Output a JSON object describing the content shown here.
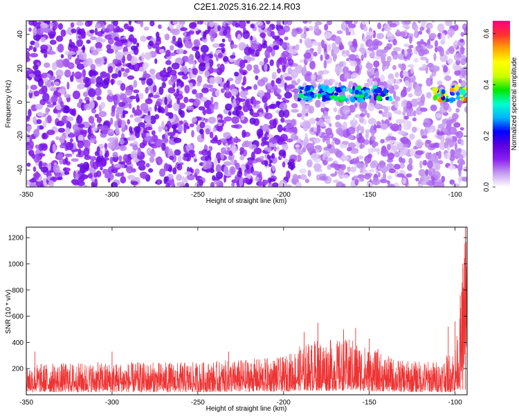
{
  "title": "C2E1.2025.316.22.14.R03",
  "chart_data": [
    {
      "type": "heatmap",
      "xlabel": "Height of straight line (km)",
      "ylabel": "Frequency (Hz)",
      "xlim": [
        -350,
        -93
      ],
      "ylim": [
        -50,
        48
      ],
      "xticks": [
        -350,
        -300,
        -250,
        -200,
        -150,
        -100
      ],
      "yticks": [
        -40,
        -20,
        0,
        20,
        40
      ],
      "colorbar": {
        "label": "Normalized spectral amplitude",
        "range": [
          0,
          0.65
        ],
        "ticks": [
          "0.0",
          "0.2",
          "0.4",
          "0.6"
        ],
        "colors": [
          "#ffffff",
          "#c59cf0",
          "#8a1ff0",
          "#5a00e0",
          "#0000ff",
          "#00b3ff",
          "#00ffcc",
          "#00e600",
          "#ccff00",
          "#ffff00",
          "#ffa500",
          "#ff3030",
          "#ff0080"
        ]
      },
      "background_amplitude_range": [
        0.02,
        0.15
      ],
      "signal_bands": [
        {
          "x_start": -192,
          "x_end": -137,
          "frequency": 5,
          "amplitude_range": [
            0.18,
            0.38
          ]
        },
        {
          "x_start": -112,
          "x_end": -93,
          "frequency": 5,
          "amplitude_range": [
            0.18,
            0.58
          ]
        }
      ]
    },
    {
      "type": "line",
      "xlabel": "Height of straight line (km)",
      "ylabel": "SNR (10 * v/v)",
      "xlim": [
        -350,
        -93
      ],
      "ylim": [
        0,
        1280
      ],
      "xticks": [
        -350,
        -300,
        -250,
        -200,
        -150,
        -100
      ],
      "yticks": [
        200,
        400,
        600,
        800,
        1000,
        1200
      ],
      "series": [
        {
          "color": "#ee3333",
          "envelope": [
            {
              "x": -350,
              "low": 20,
              "high": 240
            },
            {
              "x": -300,
              "low": 20,
              "high": 250
            },
            {
              "x": -250,
              "low": 20,
              "high": 250
            },
            {
              "x": -200,
              "low": 25,
              "high": 290
            },
            {
              "x": -190,
              "low": 30,
              "high": 380
            },
            {
              "x": -180,
              "low": 30,
              "high": 430
            },
            {
              "x": -170,
              "low": 30,
              "high": 420
            },
            {
              "x": -160,
              "low": 30,
              "high": 430
            },
            {
              "x": -150,
              "low": 25,
              "high": 360
            },
            {
              "x": -140,
              "low": 25,
              "high": 300
            },
            {
              "x": -130,
              "low": 20,
              "high": 260
            },
            {
              "x": -110,
              "low": 20,
              "high": 260
            },
            {
              "x": -104,
              "low": 20,
              "high": 310
            },
            {
              "x": -100,
              "low": 20,
              "high": 380
            },
            {
              "x": -97,
              "low": 60,
              "high": 620
            },
            {
              "x": -95.5,
              "low": 150,
              "high": 1000
            },
            {
              "x": -94,
              "low": 300,
              "high": 1300
            },
            {
              "x": -93,
              "low": 350,
              "high": 1300
            }
          ],
          "peaks": [
            {
              "x": -345,
              "y": 330
            },
            {
              "x": -300,
              "y": 330
            },
            {
              "x": -232,
              "y": 330
            },
            {
              "x": -188,
              "y": 480
            },
            {
              "x": -180,
              "y": 550
            },
            {
              "x": -165,
              "y": 500
            },
            {
              "x": -158,
              "y": 510
            },
            {
              "x": -150,
              "y": 430
            },
            {
              "x": -145,
              "y": 350
            },
            {
              "x": -104,
              "y": 520
            },
            {
              "x": -100,
              "y": 560
            },
            {
              "x": -97,
              "y": 760
            },
            {
              "x": -95.5,
              "y": 1000
            },
            {
              "x": -94,
              "y": 1300
            }
          ]
        }
      ]
    }
  ]
}
